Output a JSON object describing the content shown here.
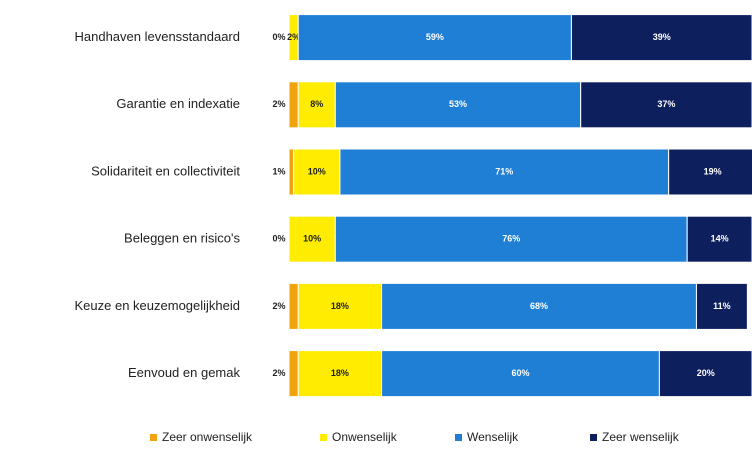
{
  "chart_data": {
    "type": "stacked-bar-horizontal",
    "categories": [
      "Handhaven levensstandaard",
      "Garantie en indexatie",
      "Solidariteit en collectiviteit",
      "Beleggen en risico's",
      "Keuze en keuzemogelijkheid",
      "Eenvoud en gemak"
    ],
    "xlim": [
      0,
      100
    ],
    "legend": "bottom",
    "series": [
      {
        "name": "Zeer onwenselijk",
        "color": "#f2a20c",
        "values": [
          0,
          2,
          1,
          0,
          2,
          2
        ],
        "value_labels": [
          "0%",
          "2%",
          "1%",
          "0%",
          "2%",
          "2%"
        ]
      },
      {
        "name": "Onwenselijk",
        "color": "#ffec00",
        "values": [
          2,
          8,
          10,
          10,
          18,
          18
        ],
        "value_labels": [
          "2%",
          "8%",
          "10%",
          "10%",
          "18%",
          "18%"
        ]
      },
      {
        "name": "Wenselijk",
        "color": "#1f7fd4",
        "values": [
          59,
          53,
          71,
          76,
          68,
          60
        ],
        "value_labels": [
          "59%",
          "53%",
          "71%",
          "76%",
          "68%",
          "60%"
        ]
      },
      {
        "name": "Zeer wenselijk",
        "color": "#0e1f5e",
        "values": [
          39,
          37,
          19,
          14,
          11,
          20
        ],
        "value_labels": [
          "39%",
          "37%",
          "19%",
          "14%",
          "11%",
          "20%"
        ]
      }
    ]
  }
}
